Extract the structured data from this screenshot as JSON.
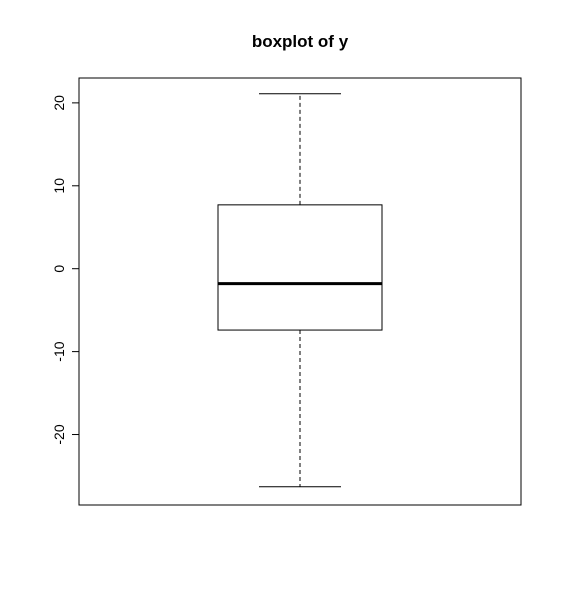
{
  "chart_data": {
    "type": "boxplot",
    "title": "boxplot of y",
    "xlabel": "",
    "ylabel": "",
    "ylim": [
      -28.5,
      23.0
    ],
    "yticks": [
      -20,
      -10,
      0,
      10,
      20
    ],
    "ytick_labels": [
      "-20",
      "-10",
      "0",
      "10",
      "20"
    ],
    "grid": false,
    "box": {
      "min": -26.3,
      "q1": -7.4,
      "median": -1.8,
      "q3": 7.7,
      "max": 21.1
    }
  }
}
